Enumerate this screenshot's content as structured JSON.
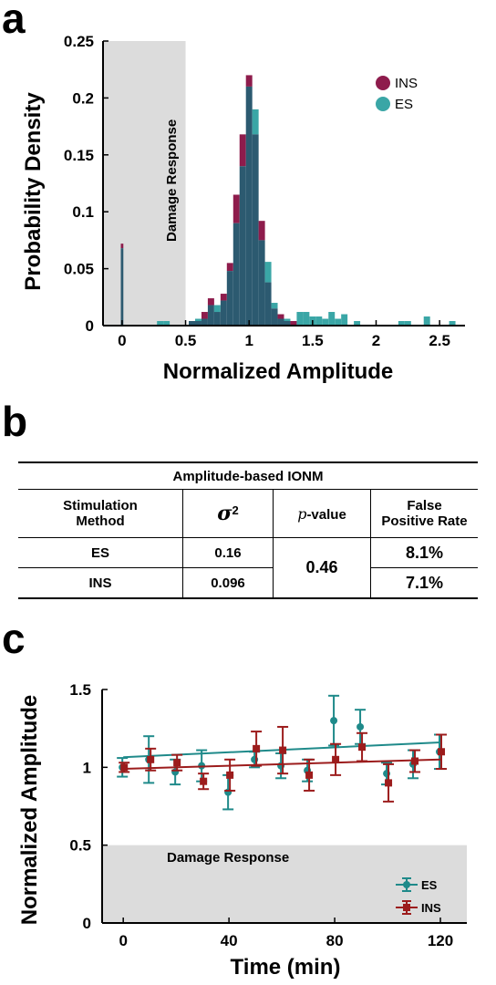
{
  "panel_a": {
    "letter": "a",
    "shaded_label": "Damage Response",
    "legend": [
      {
        "label": "INS",
        "color": "#8e1c4c"
      },
      {
        "label": "ES",
        "color": "#3aa6a6"
      }
    ]
  },
  "panel_b": {
    "letter": "b",
    "caption": "Amplitude-based IONM",
    "headers": {
      "method_line1": "Stimulation",
      "method_line2": "Method",
      "sigma": "σ",
      "sigma_exp": "2",
      "p_symbol": "p",
      "p_suffix": "-value",
      "fpr_line1": "False",
      "fpr_line2": "Positive Rate"
    },
    "rows": [
      {
        "method": "ES",
        "variance": "0.16",
        "fpr": "8.1%"
      },
      {
        "method": "INS",
        "variance": "0.096",
        "fpr": "7.1%"
      }
    ],
    "p_value": "0.46"
  },
  "panel_c": {
    "letter": "c",
    "shaded_label": "Damage Response"
  },
  "chart_data": [
    {
      "type": "bar",
      "subtype": "overlapping histogram",
      "xlabel": "Normalized Amplitude",
      "ylabel": "Probability Density",
      "xlim": [
        -0.15,
        2.7
      ],
      "ylim": [
        0,
        0.25
      ],
      "xticks": [
        "0",
        "0.5",
        "1",
        "1.5",
        "2",
        "2.5"
      ],
      "yticks": [
        "0",
        "0.05",
        "0.1",
        "0.15",
        "0.2",
        "0.25"
      ],
      "shaded_region": [
        -0.15,
        0.5
      ],
      "bin_width": 0.05,
      "colors": {
        "INS": "#8e1c4c",
        "ES": "#3aa6a6",
        "overlap": "#2c5a70"
      },
      "series": [
        {
          "name": "INS",
          "bins": [
            [
              0.0,
              0.072
            ],
            [
              0.55,
              0.004
            ],
            [
              0.6,
              0.004
            ],
            [
              0.65,
              0.012
            ],
            [
              0.7,
              0.024
            ],
            [
              0.75,
              0.012
            ],
            [
              0.8,
              0.028
            ],
            [
              0.85,
              0.055
            ],
            [
              0.9,
              0.115
            ],
            [
              0.95,
              0.168
            ],
            [
              1.0,
              0.22
            ],
            [
              1.05,
              0.168
            ],
            [
              1.1,
              0.092
            ],
            [
              1.15,
              0.038
            ],
            [
              1.2,
              0.015
            ],
            [
              1.25,
              0.01
            ],
            [
              1.3,
              0.004
            ],
            [
              1.35,
              0.004
            ]
          ]
        },
        {
          "name": "ES",
          "bins": [
            [
              0.0,
              0.068
            ],
            [
              0.3,
              0.004
            ],
            [
              0.35,
              0.004
            ],
            [
              0.55,
              0.004
            ],
            [
              0.6,
              0.006
            ],
            [
              0.65,
              0.006
            ],
            [
              0.7,
              0.018
            ],
            [
              0.75,
              0.018
            ],
            [
              0.8,
              0.022
            ],
            [
              0.85,
              0.048
            ],
            [
              0.9,
              0.09
            ],
            [
              0.95,
              0.14
            ],
            [
              1.0,
              0.21
            ],
            [
              1.05,
              0.19
            ],
            [
              1.1,
              0.075
            ],
            [
              1.15,
              0.056
            ],
            [
              1.2,
              0.02
            ],
            [
              1.25,
              0.006
            ],
            [
              1.3,
              0.006
            ],
            [
              1.4,
              0.012
            ],
            [
              1.45,
              0.012
            ],
            [
              1.5,
              0.008
            ],
            [
              1.55,
              0.008
            ],
            [
              1.6,
              0.006
            ],
            [
              1.65,
              0.012
            ],
            [
              1.7,
              0.006
            ],
            [
              1.75,
              0.01
            ],
            [
              1.85,
              0.004
            ],
            [
              2.2,
              0.004
            ],
            [
              2.25,
              0.004
            ],
            [
              2.4,
              0.008
            ],
            [
              2.6,
              0.004
            ]
          ]
        }
      ]
    },
    {
      "type": "scatter",
      "subtype": "scatter with error bars and linear fits",
      "xlabel": "Time (min)",
      "ylabel": "Normalized Amplitude",
      "xlim": [
        -8,
        130
      ],
      "ylim": [
        0,
        1.5
      ],
      "xticks": [
        "0",
        "40",
        "80",
        "120"
      ],
      "yticks": [
        "0",
        "0.5",
        "1",
        "1.5"
      ],
      "shaded_region_y": [
        0,
        0.5
      ],
      "legend_position": "bottom-right",
      "series": [
        {
          "name": "ES",
          "color": "#1f8a8a",
          "marker": "circle",
          "x": [
            0,
            10,
            20,
            30,
            40,
            50,
            60,
            70,
            80,
            90,
            100,
            110,
            120
          ],
          "y": [
            1.0,
            1.05,
            0.97,
            1.01,
            0.84,
            1.05,
            1.01,
            0.98,
            1.3,
            1.26,
            0.96,
            1.02,
            1.1
          ],
          "err": [
            0.06,
            0.15,
            0.08,
            0.1,
            0.11,
            0.05,
            0.08,
            0.07,
            0.16,
            0.11,
            0.07,
            0.09,
            0.11
          ],
          "fit": [
            [
              0,
              1.065
            ],
            [
              120,
              1.16
            ]
          ]
        },
        {
          "name": "INS",
          "color": "#9c1c1c",
          "marker": "square",
          "x": [
            0,
            10,
            20,
            30,
            40,
            50,
            60,
            70,
            80,
            90,
            100,
            110,
            120
          ],
          "y": [
            1.0,
            1.05,
            1.03,
            0.91,
            0.95,
            1.12,
            1.11,
            0.95,
            1.05,
            1.13,
            0.9,
            1.04,
            1.1
          ],
          "err": [
            0.03,
            0.07,
            0.05,
            0.05,
            0.1,
            0.11,
            0.15,
            0.1,
            0.1,
            0.09,
            0.12,
            0.07,
            0.11
          ],
          "fit": [
            [
              0,
              0.99
            ],
            [
              120,
              1.05
            ]
          ]
        }
      ]
    }
  ]
}
